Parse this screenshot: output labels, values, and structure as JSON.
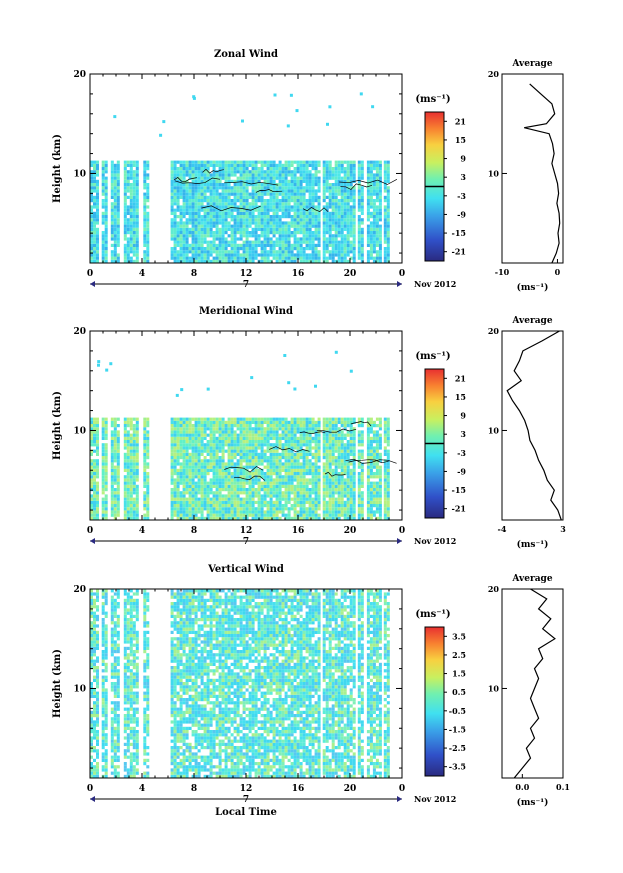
{
  "chart_data": [
    {
      "type": "heatmap",
      "title": "Zonal Wind",
      "ylabel": "Height (km)",
      "ylim": [
        1,
        20
      ],
      "y_ticks": [
        "20",
        "10"
      ],
      "xlim": [
        0,
        24
      ],
      "x_ticks": [
        "0",
        "4",
        "8",
        "12",
        "16",
        "20",
        "0"
      ],
      "date_label": "7",
      "month_label": "Nov 2012",
      "colorbar": {
        "unit": "(ms⁻¹)",
        "ticks": [
          "21",
          "15",
          "9",
          "3",
          "-3",
          "-9",
          "-15",
          "-21"
        ],
        "range": [
          -24,
          24
        ],
        "contour_level": 0
      },
      "data_columns_hours": [
        [
          0.0,
          0.6
        ],
        [
          0.9,
          1.4
        ],
        [
          1.6,
          2.3
        ],
        [
          2.6,
          3.7
        ],
        [
          4.1,
          4.4
        ],
        [
          6.2,
          17.7
        ],
        [
          17.9,
          20.4
        ],
        [
          20.6,
          21.1
        ],
        [
          21.3,
          22.4
        ],
        [
          22.6,
          23.0
        ]
      ],
      "coverage_max_km": 11.5,
      "average_profile": {
        "title": "Average",
        "xlabel": "(ms⁻¹)",
        "xlim": [
          -10,
          1
        ],
        "x_ticks": [
          "-10",
          "0"
        ],
        "y_ticks": [
          "20",
          "10"
        ],
        "height_km": [
          1,
          2,
          3,
          4,
          5,
          6,
          7,
          8,
          9,
          10,
          11,
          12,
          13,
          14,
          14.6,
          15,
          16,
          17,
          18,
          19
        ],
        "values": [
          -1.0,
          -0.2,
          0.3,
          0.1,
          0.4,
          0.3,
          -0.1,
          0.2,
          0.0,
          -0.5,
          -1.0,
          -0.6,
          -0.9,
          -1.5,
          -6.0,
          -2.0,
          -0.5,
          -1.0,
          -3.0,
          -5.0
        ]
      }
    },
    {
      "type": "heatmap",
      "title": "Meridional Wind",
      "ylabel": "Height (km)",
      "ylim": [
        1,
        20
      ],
      "y_ticks": [
        "20",
        "10"
      ],
      "xlim": [
        0,
        24
      ],
      "x_ticks": [
        "0",
        "4",
        "8",
        "12",
        "16",
        "20",
        "0"
      ],
      "date_label": "7",
      "month_label": "Nov 2012",
      "colorbar": {
        "unit": "(ms⁻¹)",
        "ticks": [
          "21",
          "15",
          "9",
          "3",
          "-3",
          "-9",
          "-15",
          "-21"
        ],
        "range": [
          -24,
          24
        ],
        "contour_level": 0
      },
      "data_columns_hours": [
        [
          0.0,
          0.6
        ],
        [
          0.9,
          1.4
        ],
        [
          1.6,
          2.3
        ],
        [
          2.6,
          3.7
        ],
        [
          4.1,
          4.4
        ],
        [
          6.2,
          17.7
        ],
        [
          17.9,
          20.4
        ],
        [
          20.6,
          21.1
        ],
        [
          21.3,
          22.4
        ],
        [
          22.6,
          23.0
        ]
      ],
      "coverage_max_km": 11.5,
      "average_profile": {
        "title": "Average",
        "xlabel": "(ms⁻¹)",
        "xlim": [
          -4,
          3
        ],
        "x_ticks": [
          "-4",
          "3"
        ],
        "y_ticks": [
          "20",
          "10"
        ],
        "height_km": [
          1,
          2,
          3,
          4,
          5,
          6,
          7,
          8,
          9,
          10,
          11,
          12,
          13,
          14,
          15,
          16,
          17,
          18,
          19,
          20
        ],
        "values": [
          2.8,
          2.4,
          1.6,
          2.0,
          1.2,
          0.8,
          0.2,
          -0.2,
          -0.8,
          -1.0,
          -1.4,
          -2.0,
          -2.8,
          -3.4,
          -1.8,
          -2.6,
          -2.0,
          -1.6,
          0.6,
          2.6
        ]
      }
    },
    {
      "type": "heatmap",
      "title": "Vertical Wind",
      "ylabel": "Height (km)",
      "xlabel": "Local Time",
      "ylim": [
        1,
        20
      ],
      "y_ticks": [
        "20",
        "10"
      ],
      "xlim": [
        0,
        24
      ],
      "x_ticks": [
        "0",
        "4",
        "8",
        "12",
        "16",
        "20",
        "0"
      ],
      "date_label": "7",
      "month_label": "Nov 2012",
      "colorbar": {
        "unit": "(ms⁻¹)",
        "ticks": [
          "3.5",
          "2.5",
          "1.5",
          "0.5",
          "-0.5",
          "-1.5",
          "-2.5",
          "-3.5"
        ],
        "range": [
          -4,
          4
        ]
      },
      "data_columns_hours": [
        [
          0.0,
          0.6
        ],
        [
          0.9,
          1.4
        ],
        [
          1.6,
          2.3
        ],
        [
          2.6,
          3.7
        ],
        [
          4.1,
          4.4
        ],
        [
          6.2,
          17.7
        ],
        [
          17.9,
          20.4
        ],
        [
          20.6,
          21.1
        ],
        [
          21.3,
          22.4
        ],
        [
          22.6,
          23.0
        ]
      ],
      "coverage_max_km": 20,
      "average_profile": {
        "title": "Average",
        "xlabel": "(ms⁻¹)",
        "xlim": [
          -0.05,
          0.1
        ],
        "x_ticks": [
          "0.0",
          "0.1"
        ],
        "y_ticks": [
          "20",
          "10"
        ],
        "height_km": [
          1,
          2,
          3,
          4,
          5,
          6,
          7,
          8,
          9,
          10,
          11,
          12,
          13,
          14,
          15,
          16,
          17,
          18,
          19,
          20
        ],
        "values": [
          -0.02,
          0.0,
          0.02,
          0.01,
          0.03,
          0.02,
          0.04,
          0.03,
          0.02,
          0.03,
          0.04,
          0.03,
          0.05,
          0.04,
          0.08,
          0.05,
          0.07,
          0.04,
          0.06,
          0.02
        ]
      }
    }
  ]
}
